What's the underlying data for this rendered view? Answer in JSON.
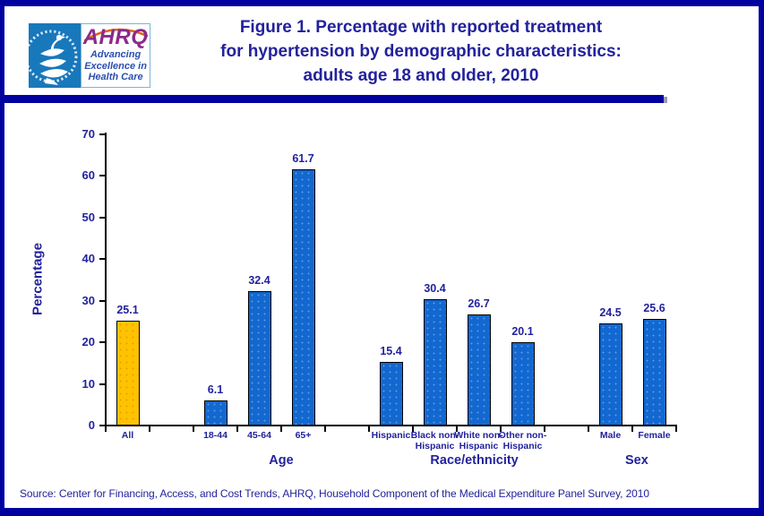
{
  "header": {
    "hhs_logo": {
      "seal_icon": "hhs-eagle-seal",
      "ahrq": "AHRQ",
      "tagline": [
        "Advancing",
        "Excellence in",
        "Health Care"
      ]
    },
    "title_lines": [
      "Figure 1. Percentage with reported treatment",
      "for hypertension by demographic characteristics:",
      "adults age 18 and older, 2010"
    ]
  },
  "chart_data": {
    "type": "bar",
    "title": "Figure 1. Percentage with reported treatment for hypertension by demographic characteristics: adults age 18 and older, 2010",
    "xlabel": "",
    "ylabel": "Percentage",
    "ylim": [
      0,
      70
    ],
    "yticks": [
      0,
      10,
      20,
      30,
      40,
      50,
      60,
      70
    ],
    "grid": false,
    "legend": "none",
    "slots": 13,
    "categories": [
      "All",
      "18-44",
      "45-64",
      "65+",
      "Hispanic",
      "Black non-Hispanic",
      "White non-Hispanic",
      "Other non-Hispanic",
      "Male",
      "Female"
    ],
    "values": [
      25.1,
      6.1,
      32.4,
      61.7,
      15.4,
      30.4,
      26.7,
      20.1,
      24.5,
      25.6
    ],
    "bars": [
      {
        "slot": 0,
        "label": "All",
        "value": 25.1,
        "color": "gold"
      },
      {
        "slot": 2,
        "label": "18-44",
        "value": 6.1,
        "color": "blue"
      },
      {
        "slot": 3,
        "label": "45-64",
        "value": 32.4,
        "color": "blue"
      },
      {
        "slot": 4,
        "label": "65+",
        "value": 61.7,
        "color": "blue"
      },
      {
        "slot": 6,
        "label": "Hispanic",
        "value": 15.4,
        "color": "blue"
      },
      {
        "slot": 7,
        "label": "Black non-\nHispanic",
        "value": 30.4,
        "color": "blue"
      },
      {
        "slot": 8,
        "label": "White non-\nHispanic",
        "value": 26.7,
        "color": "blue"
      },
      {
        "slot": 9,
        "label": "Other non-\nHispanic",
        "value": 20.1,
        "color": "blue"
      },
      {
        "slot": 11,
        "label": "Male",
        "value": 24.5,
        "color": "blue"
      },
      {
        "slot": 12,
        "label": "Female",
        "value": 25.6,
        "color": "blue"
      }
    ],
    "groups": [
      {
        "label": "Age",
        "center_slot": 3.5
      },
      {
        "label": "Race/ethnicity",
        "center_slot": 7.9
      },
      {
        "label": "Sex",
        "center_slot": 11.6
      }
    ]
  },
  "footer": {
    "source": "Source: Center for Financing, Access, and Cost Trends, AHRQ, Household Component of the Medical Expenditure Panel Survey,  2010"
  },
  "colors": {
    "navy_text": "#22229C",
    "navy_rule": "#0101A0",
    "bar_blue": "#1268D0",
    "bar_gold": "#FFC200",
    "hhs_blue": "#1878BC",
    "ahrq_purple": "#8A2B8A",
    "tagline_blue": "#2B4FAE",
    "arc_orange": "#E2631F"
  }
}
